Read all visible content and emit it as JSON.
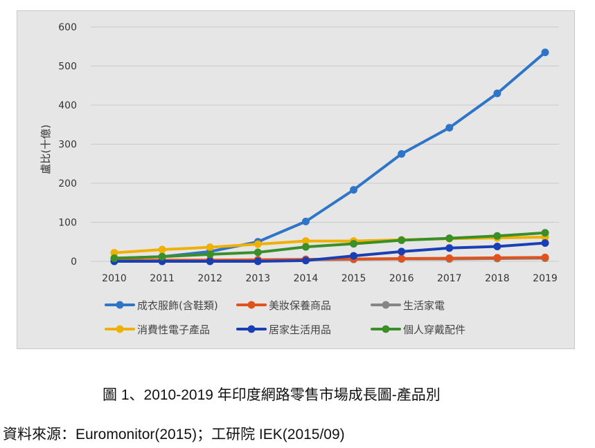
{
  "chart_data": {
    "type": "line",
    "title": "",
    "xlabel": "",
    "ylabel": "盧比(十億)",
    "ylim": [
      0,
      600
    ],
    "yticks": [
      "0",
      "100",
      "200",
      "300",
      "400",
      "500",
      "600"
    ],
    "categories": [
      "2010",
      "2011",
      "2012",
      "2013",
      "2014",
      "2015",
      "2016",
      "2017",
      "2018",
      "2019"
    ],
    "grid": true,
    "legend_position": "bottom",
    "series": [
      {
        "name": "成衣服飾(含鞋類)",
        "color": "#2e75c8",
        "values": [
          8,
          12,
          25,
          50,
          102,
          183,
          275,
          342,
          430,
          535
        ]
      },
      {
        "name": "美妝保養商品",
        "color": "#e0531c",
        "values": [
          2,
          3,
          3,
          4,
          5,
          6,
          7,
          8,
          9,
          10
        ]
      },
      {
        "name": "生活家電",
        "color": "#858585",
        "values": [
          1,
          1,
          2,
          3,
          4,
          5,
          6,
          6,
          7,
          8
        ]
      },
      {
        "name": "消費性電子產品",
        "color": "#f0b000",
        "values": [
          22,
          30,
          36,
          44,
          52,
          52,
          55,
          58,
          60,
          62
        ]
      },
      {
        "name": "居家生活用品",
        "color": "#1a3fb5",
        "values": [
          0,
          0,
          0,
          0,
          2,
          14,
          25,
          34,
          38,
          47
        ]
      },
      {
        "name": "個人穿戴配件",
        "color": "#3a8f28",
        "values": [
          8,
          12,
          18,
          23,
          37,
          45,
          54,
          59,
          65,
          73
        ]
      }
    ]
  },
  "caption": "圖 1、2010-2019 年印度網路零售市場成長圖-產品別",
  "source": "資料來源：Euromonitor(2015)；工研院 IEK(2015/09)"
}
